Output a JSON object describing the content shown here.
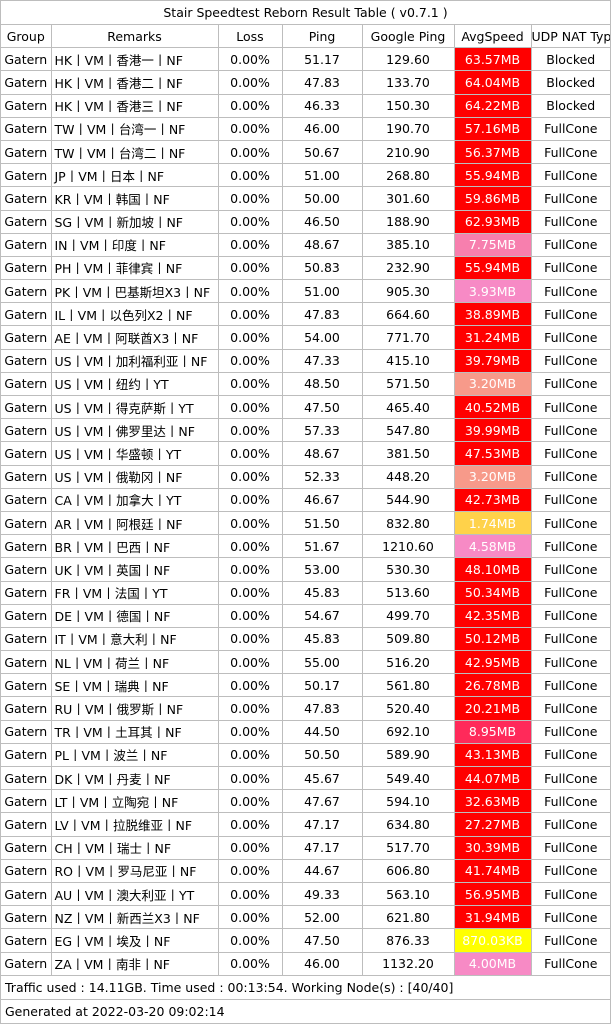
{
  "title": "Stair Speedtest Reborn Result Table ( v0.7.1 )",
  "headers": [
    "Group",
    "Remarks",
    "Loss",
    "Ping",
    "Google Ping",
    "AvgSpeed",
    "UDP NAT Type"
  ],
  "rows": [
    {
      "group": "Gatern",
      "remarks": "HK丨VM丨香港一丨NF",
      "loss": "0.00%",
      "ping": "51.17",
      "gping": "129.60",
      "speed": "63.57MB",
      "color": "#ff0000",
      "nat": "Blocked"
    },
    {
      "group": "Gatern",
      "remarks": "HK丨VM丨香港二丨NF",
      "loss": "0.00%",
      "ping": "47.83",
      "gping": "133.70",
      "speed": "64.04MB",
      "color": "#ff0000",
      "nat": "Blocked"
    },
    {
      "group": "Gatern",
      "remarks": "HK丨VM丨香港三丨NF",
      "loss": "0.00%",
      "ping": "46.33",
      "gping": "150.30",
      "speed": "64.22MB",
      "color": "#ff0000",
      "nat": "Blocked"
    },
    {
      "group": "Gatern",
      "remarks": "TW丨VM丨台湾一丨NF",
      "loss": "0.00%",
      "ping": "46.00",
      "gping": "190.70",
      "speed": "57.16MB",
      "color": "#ff0000",
      "nat": "FullCone"
    },
    {
      "group": "Gatern",
      "remarks": "TW丨VM丨台湾二丨NF",
      "loss": "0.00%",
      "ping": "50.67",
      "gping": "210.90",
      "speed": "56.37MB",
      "color": "#ff0000",
      "nat": "FullCone"
    },
    {
      "group": "Gatern",
      "remarks": "JP丨VM丨日本丨NF",
      "loss": "0.00%",
      "ping": "51.00",
      "gping": "268.80",
      "speed": "55.94MB",
      "color": "#ff0000",
      "nat": "FullCone"
    },
    {
      "group": "Gatern",
      "remarks": "KR丨VM丨韩国丨NF",
      "loss": "0.00%",
      "ping": "50.00",
      "gping": "301.60",
      "speed": "59.86MB",
      "color": "#ff0000",
      "nat": "FullCone"
    },
    {
      "group": "Gatern",
      "remarks": "SG丨VM丨新加坡丨NF",
      "loss": "0.00%",
      "ping": "46.50",
      "gping": "188.90",
      "speed": "62.93MB",
      "color": "#ff0000",
      "nat": "FullCone"
    },
    {
      "group": "Gatern",
      "remarks": "IN丨VM丨印度丨NF",
      "loss": "0.00%",
      "ping": "48.67",
      "gping": "385.10",
      "speed": "7.75MB",
      "color": "#f77fae",
      "nat": "FullCone"
    },
    {
      "group": "Gatern",
      "remarks": "PH丨VM丨菲律宾丨NF",
      "loss": "0.00%",
      "ping": "50.83",
      "gping": "232.90",
      "speed": "55.94MB",
      "color": "#ff0000",
      "nat": "FullCone"
    },
    {
      "group": "Gatern",
      "remarks": "PK丨VM丨巴基斯坦X3丨NF",
      "loss": "0.00%",
      "ping": "51.00",
      "gping": "905.30",
      "speed": "3.93MB",
      "color": "#f78ac5",
      "nat": "FullCone"
    },
    {
      "group": "Gatern",
      "remarks": "IL丨VM丨以色列X2丨NF",
      "loss": "0.00%",
      "ping": "47.83",
      "gping": "664.60",
      "speed": "38.89MB",
      "color": "#ff0000",
      "nat": "FullCone"
    },
    {
      "group": "Gatern",
      "remarks": "AE丨VM丨阿联酋X3丨NF",
      "loss": "0.00%",
      "ping": "54.00",
      "gping": "771.70",
      "speed": "31.24MB",
      "color": "#ff0000",
      "nat": "FullCone"
    },
    {
      "group": "Gatern",
      "remarks": "US丨VM丨加利福利亚丨NF",
      "loss": "0.00%",
      "ping": "47.33",
      "gping": "415.10",
      "speed": "39.79MB",
      "color": "#ff0000",
      "nat": "FullCone"
    },
    {
      "group": "Gatern",
      "remarks": "US丨VM丨纽约丨YT",
      "loss": "0.00%",
      "ping": "48.50",
      "gping": "571.50",
      "speed": "3.20MB",
      "color": "#f79a8a",
      "nat": "FullCone"
    },
    {
      "group": "Gatern",
      "remarks": "US丨VM丨得克萨斯丨YT",
      "loss": "0.00%",
      "ping": "47.50",
      "gping": "465.40",
      "speed": "40.52MB",
      "color": "#ff0000",
      "nat": "FullCone"
    },
    {
      "group": "Gatern",
      "remarks": "US丨VM丨佛罗里达丨NF",
      "loss": "0.00%",
      "ping": "57.33",
      "gping": "547.80",
      "speed": "39.99MB",
      "color": "#ff0000",
      "nat": "FullCone"
    },
    {
      "group": "Gatern",
      "remarks": "US丨VM丨华盛顿丨YT",
      "loss": "0.00%",
      "ping": "48.67",
      "gping": "381.50",
      "speed": "47.53MB",
      "color": "#ff0000",
      "nat": "FullCone"
    },
    {
      "group": "Gatern",
      "remarks": "US丨VM丨俄勒冈丨NF",
      "loss": "0.00%",
      "ping": "52.33",
      "gping": "448.20",
      "speed": "3.20MB",
      "color": "#f79a8a",
      "nat": "FullCone"
    },
    {
      "group": "Gatern",
      "remarks": "CA丨VM丨加拿大丨YT",
      "loss": "0.00%",
      "ping": "46.67",
      "gping": "544.90",
      "speed": "42.73MB",
      "color": "#ff0000",
      "nat": "FullCone"
    },
    {
      "group": "Gatern",
      "remarks": "AR丨VM丨阿根廷丨NF",
      "loss": "0.00%",
      "ping": "51.50",
      "gping": "832.80",
      "speed": "1.74MB",
      "color": "#ffd24a",
      "nat": "FullCone"
    },
    {
      "group": "Gatern",
      "remarks": "BR丨VM丨巴西丨NF",
      "loss": "0.00%",
      "ping": "51.67",
      "gping": "1210.60",
      "speed": "4.58MB",
      "color": "#f78ac5",
      "nat": "FullCone"
    },
    {
      "group": "Gatern",
      "remarks": "UK丨VM丨英国丨NF",
      "loss": "0.00%",
      "ping": "53.00",
      "gping": "530.30",
      "speed": "48.10MB",
      "color": "#ff0000",
      "nat": "FullCone"
    },
    {
      "group": "Gatern",
      "remarks": "FR丨VM丨法国丨YT",
      "loss": "0.00%",
      "ping": "45.83",
      "gping": "513.60",
      "speed": "50.34MB",
      "color": "#ff0000",
      "nat": "FullCone"
    },
    {
      "group": "Gatern",
      "remarks": "DE丨VM丨德国丨NF",
      "loss": "0.00%",
      "ping": "54.67",
      "gping": "499.70",
      "speed": "42.35MB",
      "color": "#ff0000",
      "nat": "FullCone"
    },
    {
      "group": "Gatern",
      "remarks": "IT丨VM丨意大利丨NF",
      "loss": "0.00%",
      "ping": "45.83",
      "gping": "509.80",
      "speed": "50.12MB",
      "color": "#ff0000",
      "nat": "FullCone"
    },
    {
      "group": "Gatern",
      "remarks": "NL丨VM丨荷兰丨NF",
      "loss": "0.00%",
      "ping": "55.00",
      "gping": "516.20",
      "speed": "42.95MB",
      "color": "#ff0000",
      "nat": "FullCone"
    },
    {
      "group": "Gatern",
      "remarks": "SE丨VM丨瑞典丨NF",
      "loss": "0.00%",
      "ping": "50.17",
      "gping": "561.80",
      "speed": "26.78MB",
      "color": "#ff0000",
      "nat": "FullCone"
    },
    {
      "group": "Gatern",
      "remarks": "RU丨VM丨俄罗斯丨NF",
      "loss": "0.00%",
      "ping": "47.83",
      "gping": "520.40",
      "speed": "20.21MB",
      "color": "#ff0000",
      "nat": "FullCone"
    },
    {
      "group": "Gatern",
      "remarks": "TR丨VM丨土耳其丨NF",
      "loss": "0.00%",
      "ping": "44.50",
      "gping": "692.10",
      "speed": "8.95MB",
      "color": "#ff2a5a",
      "nat": "FullCone"
    },
    {
      "group": "Gatern",
      "remarks": "PL丨VM丨波兰丨NF",
      "loss": "0.00%",
      "ping": "50.50",
      "gping": "589.90",
      "speed": "43.13MB",
      "color": "#ff0000",
      "nat": "FullCone"
    },
    {
      "group": "Gatern",
      "remarks": "DK丨VM丨丹麦丨NF",
      "loss": "0.00%",
      "ping": "45.67",
      "gping": "549.40",
      "speed": "44.07MB",
      "color": "#ff0000",
      "nat": "FullCone"
    },
    {
      "group": "Gatern",
      "remarks": "LT丨VM丨立陶宛丨NF",
      "loss": "0.00%",
      "ping": "47.67",
      "gping": "594.10",
      "speed": "32.63MB",
      "color": "#ff0000",
      "nat": "FullCone"
    },
    {
      "group": "Gatern",
      "remarks": "LV丨VM丨拉脱维亚丨NF",
      "loss": "0.00%",
      "ping": "47.17",
      "gping": "634.80",
      "speed": "27.27MB",
      "color": "#ff0000",
      "nat": "FullCone"
    },
    {
      "group": "Gatern",
      "remarks": "CH丨VM丨瑞士丨NF",
      "loss": "0.00%",
      "ping": "47.17",
      "gping": "517.70",
      "speed": "30.39MB",
      "color": "#ff0000",
      "nat": "FullCone"
    },
    {
      "group": "Gatern",
      "remarks": "RO丨VM丨罗马尼亚丨NF",
      "loss": "0.00%",
      "ping": "44.67",
      "gping": "606.80",
      "speed": "41.74MB",
      "color": "#ff0000",
      "nat": "FullCone"
    },
    {
      "group": "Gatern",
      "remarks": "AU丨VM丨澳大利亚丨YT",
      "loss": "0.00%",
      "ping": "49.33",
      "gping": "563.10",
      "speed": "56.95MB",
      "color": "#ff0000",
      "nat": "FullCone"
    },
    {
      "group": "Gatern",
      "remarks": "NZ丨VM丨新西兰X3丨NF",
      "loss": "0.00%",
      "ping": "52.00",
      "gping": "621.80",
      "speed": "31.94MB",
      "color": "#ff0000",
      "nat": "FullCone"
    },
    {
      "group": "Gatern",
      "remarks": "EG丨VM丨埃及丨NF",
      "loss": "0.00%",
      "ping": "47.50",
      "gping": "876.33",
      "speed": "870.03KB",
      "color": "#ffff00",
      "nat": "FullCone"
    },
    {
      "group": "Gatern",
      "remarks": "ZA丨VM丨南非丨NF",
      "loss": "0.00%",
      "ping": "46.00",
      "gping": "1132.20",
      "speed": "4.00MB",
      "color": "#f78ac5",
      "nat": "FullCone"
    }
  ],
  "footer": {
    "traffic": "Traffic used : 14.11GB. Time used : 00:13:54. Working Node(s) : [40/40]",
    "generated": "Generated at 2022-03-20 09:02:14"
  }
}
